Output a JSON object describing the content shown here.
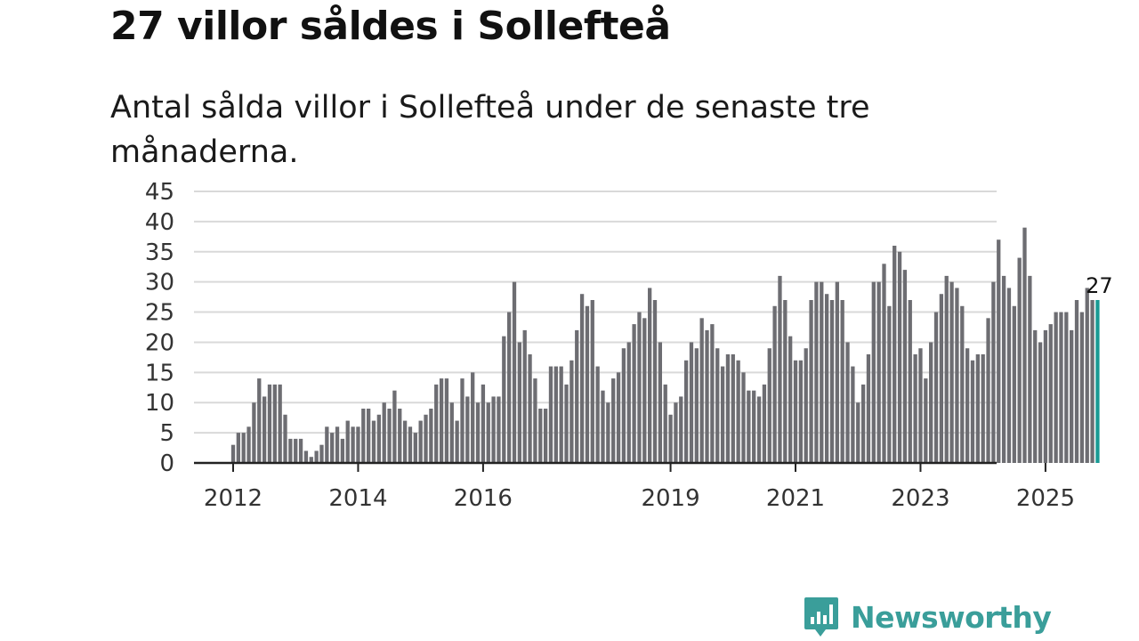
{
  "headline": "27 villor såldes i Sollefteå",
  "subtitle": "Antal sålda villor i Sollefteå under de senaste tre månaderna.",
  "brand": {
    "name": "Newsworthy",
    "color": "#3a9e9a"
  },
  "colors": {
    "bar": "#6d6d72",
    "highlight": "#1a9a94",
    "grid": "#d9d9d9",
    "axis": "#222222"
  },
  "chart_data": {
    "type": "bar",
    "title": "Antal sålda villor i Sollefteå under de senaste tre månaderna.",
    "xlabel": "",
    "ylabel": "",
    "ylim": [
      0,
      45
    ],
    "yticks": [
      0,
      5,
      10,
      15,
      20,
      25,
      30,
      35,
      40,
      45
    ],
    "grid": true,
    "start_month": "2012-01",
    "x_tick_labels": [
      {
        "label": "2012",
        "month": "2012-01"
      },
      {
        "label": "2014",
        "month": "2014-01"
      },
      {
        "label": "2016",
        "month": "2016-01"
      },
      {
        "label": "2019",
        "month": "2019-01"
      },
      {
        "label": "2021",
        "month": "2021-01"
      },
      {
        "label": "2023",
        "month": "2023-01"
      },
      {
        "label": "2025",
        "month": "2025-01"
      }
    ],
    "values": [
      3,
      5,
      5,
      6,
      10,
      14,
      11,
      13,
      13,
      13,
      8,
      4,
      4,
      4,
      2,
      1,
      2,
      3,
      6,
      5,
      6,
      4,
      7,
      6,
      6,
      9,
      9,
      7,
      8,
      10,
      9,
      12,
      9,
      7,
      6,
      5,
      7,
      8,
      9,
      13,
      14,
      14,
      10,
      7,
      14,
      11,
      15,
      10,
      13,
      10,
      11,
      11,
      21,
      25,
      30,
      20,
      22,
      18,
      14,
      9,
      9,
      16,
      16,
      16,
      13,
      17,
      22,
      28,
      26,
      27,
      16,
      12,
      10,
      14,
      15,
      19,
      20,
      23,
      25,
      24,
      29,
      27,
      20,
      13,
      8,
      10,
      11,
      17,
      20,
      19,
      24,
      22,
      23,
      19,
      16,
      18,
      18,
      17,
      15,
      12,
      12,
      11,
      13,
      19,
      26,
      31,
      27,
      21,
      17,
      17,
      19,
      27,
      30,
      30,
      28,
      27,
      30,
      27,
      20,
      16,
      10,
      13,
      18,
      30,
      30,
      33,
      26,
      36,
      35,
      32,
      27,
      18,
      19,
      14,
      20,
      25,
      28,
      31,
      30,
      29,
      26,
      19,
      17,
      18,
      18,
      24,
      30,
      37,
      31,
      29,
      26,
      34,
      39,
      31,
      22,
      20,
      22,
      23,
      25,
      25,
      25,
      22,
      27,
      25,
      29,
      27,
      27
    ],
    "highlight_last": true,
    "last_value_label": "27"
  }
}
